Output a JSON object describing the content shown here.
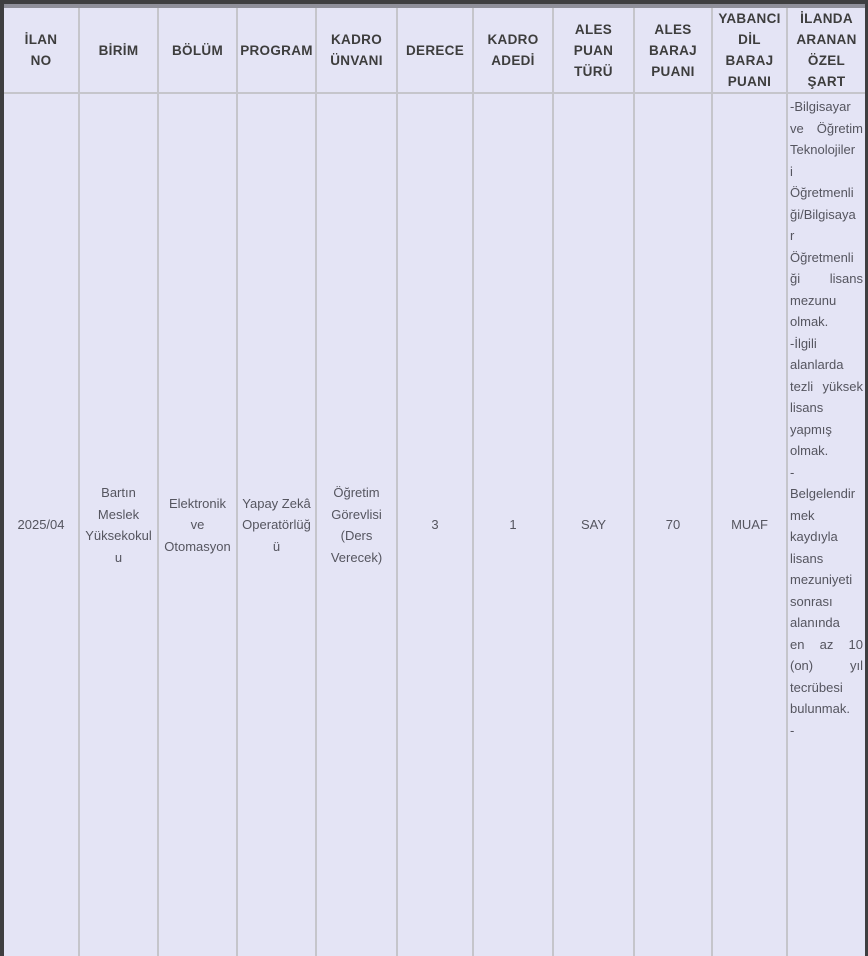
{
  "colors": {
    "table_background": "#e4e4f5",
    "grid_border": "#c5c5cb",
    "frame_dark": "#3e3e40",
    "frame_top_band": "#8f8f9a",
    "header_text": "#3d3d3d",
    "cell_text": "#55555f"
  },
  "table": {
    "headers": [
      "İLAN\nNO",
      "BİRİM",
      "BÖLÜM",
      "PROGRAM",
      "KADRO\nÜNVANI",
      "DERECE",
      "KADRO\nADEDİ",
      "ALES\nPUAN\nTÜRÜ",
      "ALES\nBARAJ\nPUANI",
      "YABANCI\nDİL BARAJ\nPUANI",
      "İLANDA\nARANAN\nÖZEL\nŞART"
    ],
    "row": {
      "ilan_no": "2025/04",
      "birim": "Bartın\nMeslek\nYüksekokul\nu",
      "bolum": "Elektronik\nve\nOtomasyon",
      "program": "Yapay Zekâ\nOperatörlüğ\nü",
      "kadro_unvani": "Öğretim\nGörevlisi\n(Ders\nVerecek)",
      "derece": "3",
      "kadro_adedi": "1",
      "ales_puan_turu": "SAY",
      "ales_baraj_puani": "70",
      "yabanci_dil_baraj_puani": "MUAF",
      "ozel_sart": "-Bilgisayar\nve Öğretim\nTeknolojiler\ni\nÖğretmenli\nği/Bilgisaya\nr\nÖğretmenli\nği lisans\nmezunu\nolmak.\n-İlgili\nalanlarda\ntezli yüksek\nlisans\nyapmış\nolmak.\n-\nBelgelendir\nmek\nkaydıyla\nlisans\nmezuniyeti\nsonrası\nalanında\nen az 10\n(on) yıl\ntecrübesi\nbulunmak.\n-"
    }
  }
}
